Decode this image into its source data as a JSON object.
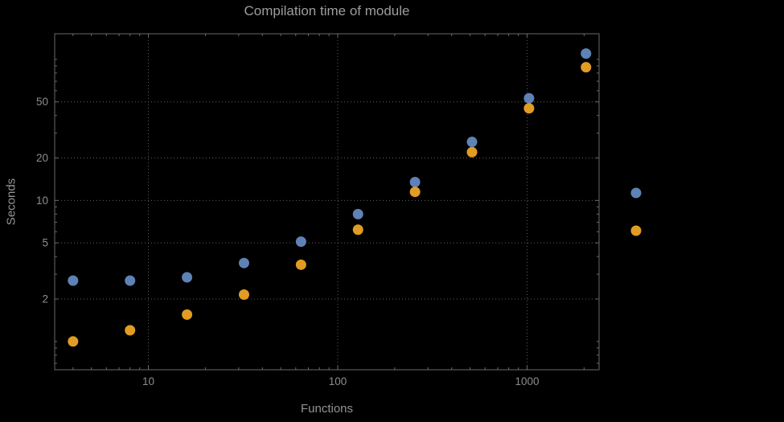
{
  "page": {
    "background": "#000000"
  },
  "chart_data": {
    "type": "scatter",
    "title": "Compilation time of module",
    "xlabel": "Functions",
    "ylabel": "Seconds",
    "x_scale": "log",
    "y_scale": "log",
    "xlim": [
      3.2,
      2400
    ],
    "ylim": [
      0.63,
      152
    ],
    "x_ticks": [
      10,
      100,
      1000
    ],
    "y_ticks": [
      2,
      5,
      10,
      20,
      50
    ],
    "grid": true,
    "x": [
      4,
      8,
      16,
      32,
      64,
      128,
      256,
      512,
      1024,
      2048
    ],
    "series": [
      {
        "name": "series-blue",
        "color": "#5e82b5",
        "values": [
          2.7,
          2.7,
          2.85,
          3.6,
          5.1,
          8.0,
          13.5,
          26,
          53,
          110
        ]
      },
      {
        "name": "series-orange",
        "color": "#e19c24",
        "values": [
          1.0,
          1.2,
          1.55,
          2.15,
          3.5,
          6.2,
          11.5,
          22,
          45,
          88
        ]
      }
    ],
    "legend": {
      "position": "right",
      "markers": [
        "#5e82b5",
        "#e19c24"
      ],
      "marker_values": [
        11.3,
        6.1
      ]
    },
    "colors": {
      "background": "#000000",
      "grid": "#5f5f5f",
      "frame": "#6a6a6a",
      "tick_text": "#8d8d8d",
      "title_text": "#9d9d9d"
    }
  }
}
